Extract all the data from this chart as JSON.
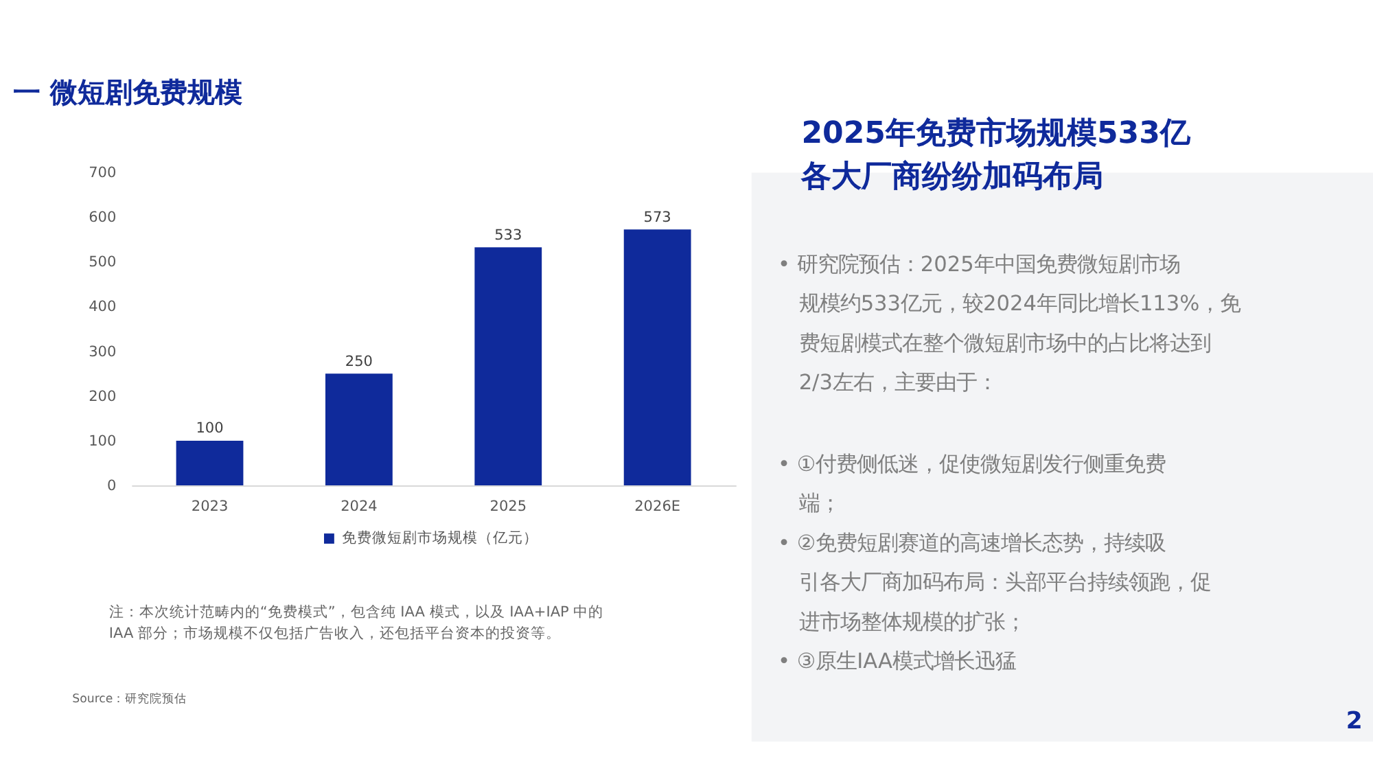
{
  "chart_data": {
    "type": "bar",
    "title": "一 微短剧免费规模",
    "categories": [
      "2023",
      "2024",
      "2025",
      "2026E"
    ],
    "series": [
      {
        "name": "免费微短剧市场规模（亿元）",
        "color": "#0f2a9b",
        "values": [
          100,
          250,
          533,
          573
        ]
      }
    ],
    "ylim": [
      0,
      700
    ],
    "yticks": [
      0,
      100,
      200,
      300,
      400,
      500,
      600,
      700
    ],
    "data_labels": true,
    "legend": "bottom",
    "grid": false,
    "annotations": [
      "2025年免费市场规模533亿",
      "各大厂商纷纷加码布局",
      "• 研究院预估：2025年中国免费微短剧市场规模约533亿元，较2024年同比增长113%，免费短剧模式在整个微短剧市场中的占比将达到2/3左右，主要由于：",
      "• ①付费侧低迷，促使微短剧发行侧重免费端；",
      "• ②免费短剧赛道的高速增长态势，持续吸引各大厂商加码布局：头部平台持续领跑，促进市场整体规模的扩张；",
      "• ③原生IAA模式增长迅猛",
      "注：本次统计范畴内的“免费模式”，包含纯 IAA 模式，以及 IAA+IAP 中的\nIAA 部分；市场规模不仅包括广告收入，还包括平台资本的投资等。",
      "Source：研究院预估",
      "2"
    ]
  }
}
